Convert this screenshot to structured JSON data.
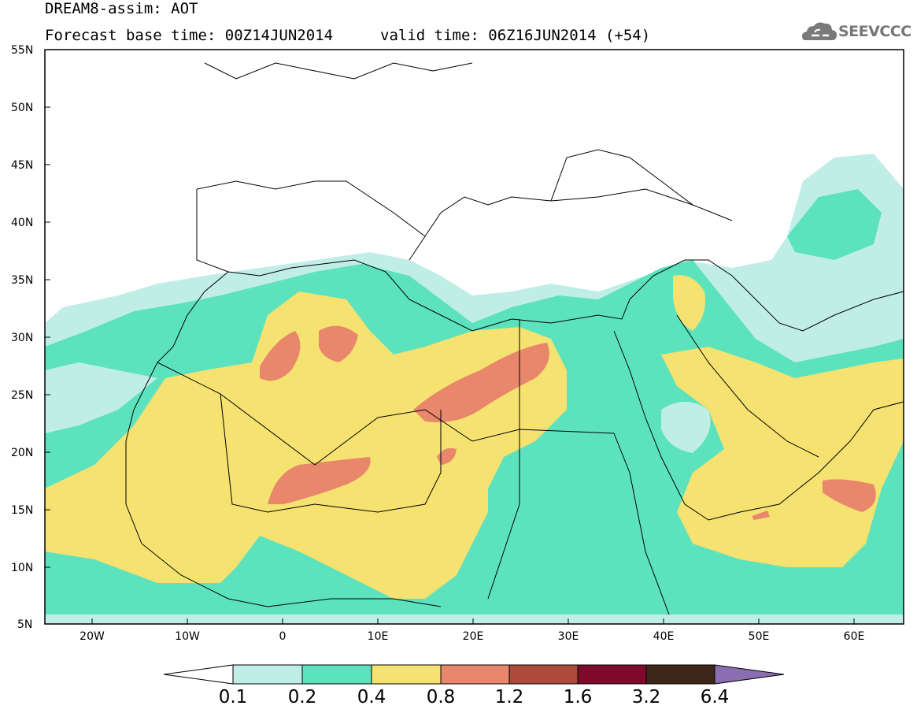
{
  "header": {
    "line1": "DREAM8-assim: AOT",
    "line2_left": "Forecast base time: 00Z14JUN2014",
    "line2_right": "valid time: 06Z16JUN2014 (+54)"
  },
  "logo": {
    "text": "SEEVCCC",
    "icon": "cloud-icon"
  },
  "map": {
    "lat_labels": [
      "55N",
      "50N",
      "45N",
      "40N",
      "35N",
      "30N",
      "25N",
      "20N",
      "15N",
      "10N",
      "5N"
    ],
    "lon_labels": [
      "20W",
      "10W",
      "0",
      "10E",
      "20E",
      "30E",
      "40E",
      "50E",
      "60E"
    ]
  },
  "colorbar": {
    "labels": [
      "0.1",
      "0.2",
      "0.4",
      "0.8",
      "1.2",
      "1.6",
      "3.2",
      "6.4"
    ],
    "colors": [
      "#ffffff",
      "#c0eee6",
      "#5ce3bd",
      "#f5e271",
      "#e8876b",
      "#ad4b3b",
      "#7f0a2b",
      "#3e2718",
      "#8b6db1"
    ]
  },
  "colors": {
    "level_0_1": "#c0eee6",
    "level_0_2": "#5ce3bd",
    "level_0_4": "#f5e271",
    "level_0_8": "#e8876b",
    "border": "#000000"
  }
}
